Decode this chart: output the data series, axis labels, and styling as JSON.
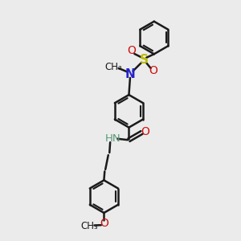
{
  "bg_color": "#ebebeb",
  "black": "#1a1a1a",
  "blue": "#2222cc",
  "red": "#cc1111",
  "sulfur": "#bbbb00",
  "teal": "#5a9a7a",
  "bond_lw": 1.8,
  "ring_r": 0.68,
  "fig_w": 3.0,
  "fig_h": 3.0,
  "dpi": 100,
  "xlim": [
    0,
    10
  ],
  "ylim": [
    0,
    10
  ]
}
